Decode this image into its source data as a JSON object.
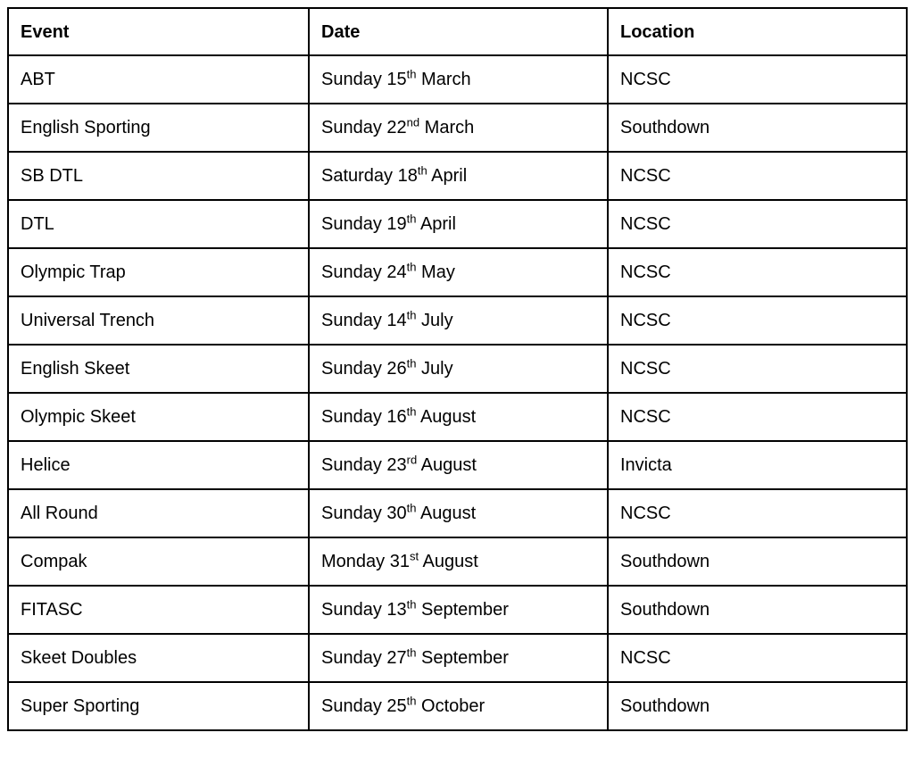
{
  "table": {
    "headers": [
      "Event",
      "Date",
      "Location"
    ],
    "rows": [
      {
        "event": "ABT",
        "date": {
          "pre": "Sunday 15",
          "sup": "th",
          "post": " March"
        },
        "location": "NCSC"
      },
      {
        "event": "English Sporting",
        "date": {
          "pre": "Sunday 22",
          "sup": "nd",
          "post": " March"
        },
        "location": "Southdown"
      },
      {
        "event": "SB DTL",
        "date": {
          "pre": "Saturday 18",
          "sup": "th",
          "post": " April"
        },
        "location": "NCSC"
      },
      {
        "event": "DTL",
        "date": {
          "pre": "Sunday 19",
          "sup": "th",
          "post": " April"
        },
        "location": "NCSC"
      },
      {
        "event": "Olympic Trap",
        "date": {
          "pre": "Sunday 24",
          "sup": "th",
          "post": " May"
        },
        "location": "NCSC"
      },
      {
        "event": "Universal Trench",
        "date": {
          "pre": "Sunday 14",
          "sup": "th",
          "post": " July"
        },
        "location": "NCSC"
      },
      {
        "event": "English Skeet",
        "date": {
          "pre": "Sunday 26",
          "sup": "th",
          "post": " July"
        },
        "location": "NCSC"
      },
      {
        "event": "Olympic Skeet",
        "date": {
          "pre": "Sunday 16",
          "sup": "th",
          "post": " August"
        },
        "location": "NCSC"
      },
      {
        "event": "Helice",
        "date": {
          "pre": "Sunday 23",
          "sup": "rd",
          "post": " August"
        },
        "location": "Invicta"
      },
      {
        "event": "All Round",
        "date": {
          "pre": "Sunday 30",
          "sup": "th",
          "post": " August"
        },
        "location": "NCSC"
      },
      {
        "event": "Compak",
        "date": {
          "pre": "Monday 31",
          "sup": "st",
          "post": " August"
        },
        "location": "Southdown"
      },
      {
        "event": "FITASC",
        "date": {
          "pre": "Sunday 13",
          "sup": "th",
          "post": " September"
        },
        "location": "Southdown"
      },
      {
        "event": "Skeet Doubles",
        "date": {
          "pre": "Sunday 27",
          "sup": "th",
          "post": " September"
        },
        "location": "NCSC"
      },
      {
        "event": "Super Sporting",
        "date": {
          "pre": "Sunday 25",
          "sup": "th",
          "post": " October"
        },
        "location": "Southdown"
      }
    ]
  }
}
